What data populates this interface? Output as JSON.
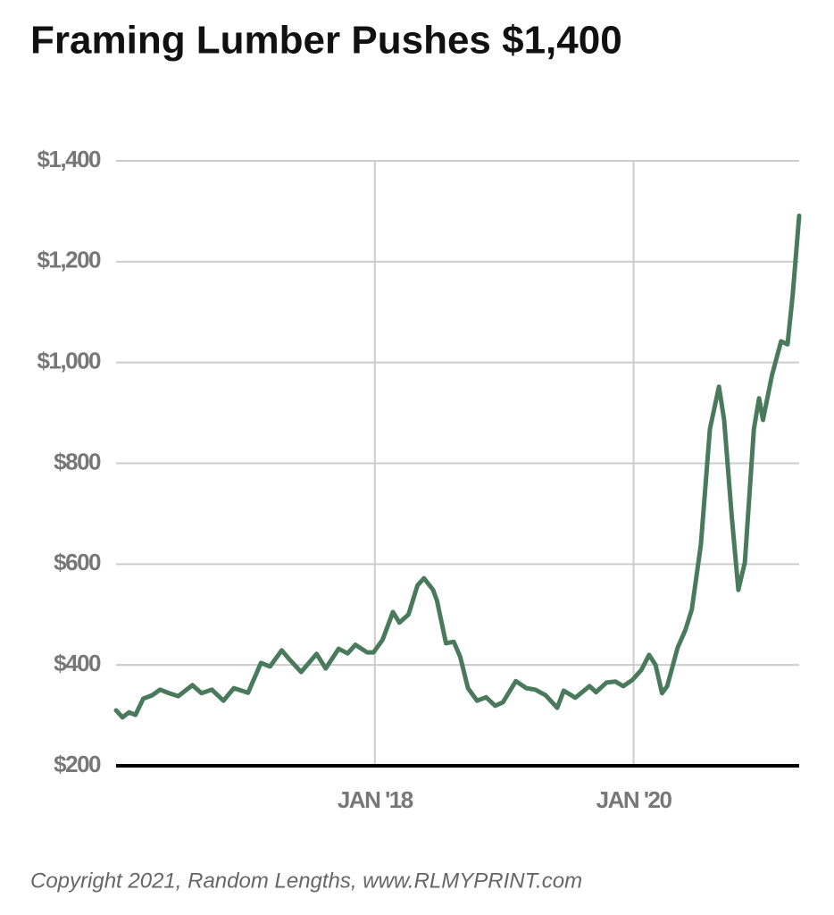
{
  "chart_data": {
    "type": "line",
    "title": "Framing Lumber Pushes $1,400",
    "source": "Copyright 2021, Random Lengths, www.RLMYPRINT.com",
    "x": [
      2016.0,
      2016.05,
      2016.1,
      2016.15,
      2016.21,
      2016.28,
      2016.34,
      2016.41,
      2016.48,
      2016.59,
      2016.66,
      2016.74,
      2016.83,
      2016.91,
      2017.02,
      2017.12,
      2017.19,
      2017.28,
      2017.34,
      2017.43,
      2017.55,
      2017.62,
      2017.72,
      2017.79,
      2017.85,
      2017.94,
      2017.99,
      2018.06,
      2018.14,
      2018.19,
      2018.26,
      2018.33,
      2018.38,
      2018.45,
      2018.48,
      2018.55,
      2018.61,
      2018.66,
      2018.72,
      2018.79,
      2018.86,
      2018.93,
      2018.99,
      2019.09,
      2019.17,
      2019.24,
      2019.32,
      2019.41,
      2019.46,
      2019.55,
      2019.66,
      2019.71,
      2019.79,
      2019.86,
      2019.92,
      2019.99,
      2020.06,
      2020.12,
      2020.17,
      2020.22,
      2020.26,
      2020.34,
      2020.4,
      2020.45,
      2020.52,
      2020.59,
      2020.66,
      2020.7,
      2020.76,
      2020.81,
      2020.86,
      2020.93,
      2020.97,
      2021.0,
      2021.07,
      2021.14,
      2021.19,
      2021.23,
      2021.28
    ],
    "series": [
      {
        "name": "Framing Lumber",
        "color": "#4a7a5c",
        "values": [
          310,
          296,
          306,
          301,
          333,
          340,
          351,
          344,
          338,
          360,
          344,
          351,
          329,
          354,
          345,
          404,
          397,
          429,
          411,
          386,
          422,
          393,
          432,
          423,
          440,
          425,
          425,
          450,
          505,
          484,
          500,
          558,
          572,
          549,
          528,
          443,
          446,
          416,
          354,
          329,
          336,
          319,
          326,
          368,
          354,
          351,
          340,
          315,
          349,
          335,
          358,
          346,
          365,
          367,
          358,
          370,
          390,
          420,
          400,
          344,
          358,
          434,
          469,
          510,
          638,
          868,
          952,
          886,
          691,
          549,
          603,
          868,
          929,
          886,
          975,
          1042,
          1036,
          1134,
          1291
        ]
      }
    ],
    "xlim": [
      2016,
      2021.28
    ],
    "xticks": [
      {
        "value": 2018,
        "label": "JAN '18"
      },
      {
        "value": 2020,
        "label": "JAN '20"
      }
    ],
    "ylim": [
      200,
      1400
    ],
    "yticks": [
      {
        "value": 200,
        "label": "$200"
      },
      {
        "value": 400,
        "label": "$400"
      },
      {
        "value": 600,
        "label": "$600"
      },
      {
        "value": 800,
        "label": "$800"
      },
      {
        "value": 1000,
        "label": "$1,000"
      },
      {
        "value": 1200,
        "label": "$1,200"
      },
      {
        "value": 1400,
        "label": "$1,400"
      }
    ],
    "grid": true
  }
}
